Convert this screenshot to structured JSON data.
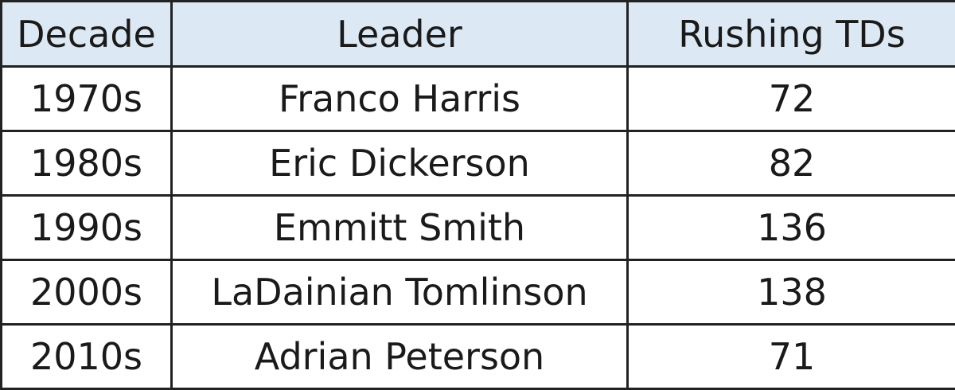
{
  "table": {
    "headers": [
      "Decade",
      "Leader",
      "Rushing TDs"
    ],
    "rows": [
      [
        "1970s",
        "Franco Harris",
        "72"
      ],
      [
        "1980s",
        "Eric Dickerson",
        "82"
      ],
      [
        "1990s",
        "Emmitt Smith",
        "136"
      ],
      [
        "2000s",
        "LaDainian Tomlinson",
        "138"
      ],
      [
        "2010s",
        "Adrian Peterson",
        "71"
      ]
    ]
  },
  "colors": {
    "header_bg": "#dde8f5",
    "border": "#222222"
  }
}
